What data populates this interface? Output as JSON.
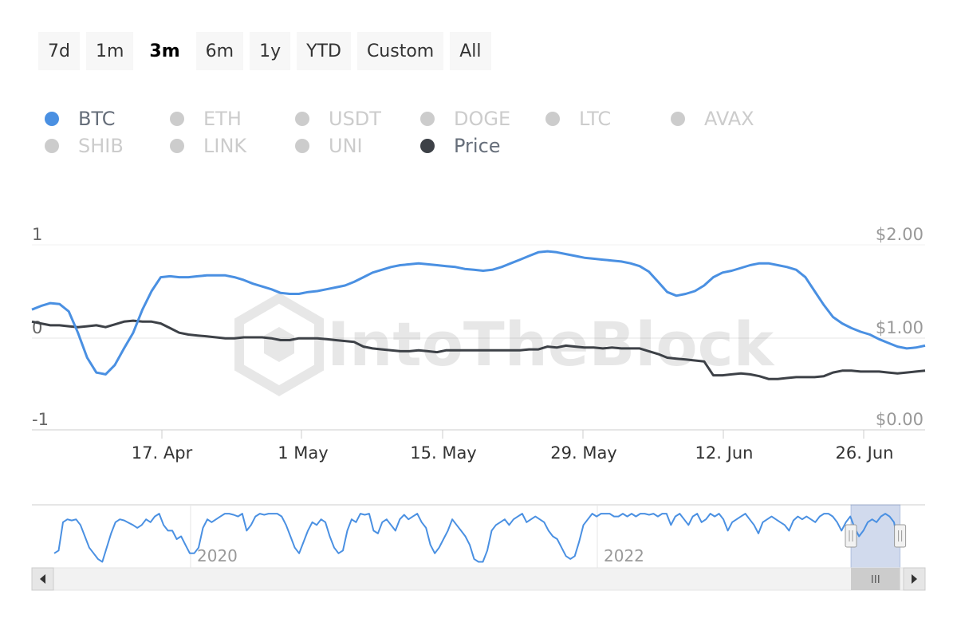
{
  "range_selector": {
    "buttons": [
      "7d",
      "1m",
      "3m",
      "6m",
      "1y",
      "YTD",
      "Custom",
      "All"
    ],
    "active": "3m"
  },
  "legend": {
    "row1": [
      {
        "label": "BTC",
        "color": "#4a90e2",
        "active": true
      },
      {
        "label": "ETH",
        "color": "#cccccc",
        "active": false
      },
      {
        "label": "USDT",
        "color": "#cccccc",
        "active": false
      },
      {
        "label": "DOGE",
        "color": "#cccccc",
        "active": false
      },
      {
        "label": "LTC",
        "color": "#cccccc",
        "active": false
      },
      {
        "label": "AVAX",
        "color": "#cccccc",
        "active": false
      }
    ],
    "row2": [
      {
        "label": "SHIB",
        "color": "#cccccc",
        "active": false
      },
      {
        "label": "LINK",
        "color": "#cccccc",
        "active": false
      },
      {
        "label": "UNI",
        "color": "#cccccc",
        "active": false
      },
      {
        "label": "Price",
        "color": "#3d4147",
        "active": true
      }
    ]
  },
  "watermark": "IntoTheBlock",
  "chart_data": {
    "type": "line",
    "x_ticks": [
      "17. Apr",
      "1 May",
      "15. May",
      "29. May",
      "12. Jun",
      "26. Jun"
    ],
    "left_axis": {
      "ticks": [
        "1",
        "0",
        "-1"
      ],
      "range": [
        -1,
        1
      ]
    },
    "right_axis": {
      "ticks": [
        "$2.00",
        "$1.00",
        "$0.00"
      ],
      "range": [
        0,
        2
      ]
    },
    "series": [
      {
        "color": "#4a90e2",
        "axis": "left",
        "values": [
          0.3,
          0.34,
          0.37,
          0.36,
          0.28,
          0.05,
          -0.22,
          -0.38,
          -0.4,
          -0.3,
          -0.12,
          0.05,
          0.3,
          0.5,
          0.65,
          0.66,
          0.65,
          0.65,
          0.66,
          0.67,
          0.67,
          0.67,
          0.65,
          0.62,
          0.58,
          0.55,
          0.52,
          0.48,
          0.47,
          0.47,
          0.49,
          0.5,
          0.52,
          0.54,
          0.56,
          0.6,
          0.65,
          0.7,
          0.73,
          0.76,
          0.78,
          0.79,
          0.8,
          0.79,
          0.78,
          0.77,
          0.76,
          0.74,
          0.73,
          0.72,
          0.73,
          0.76,
          0.8,
          0.84,
          0.88,
          0.92,
          0.93,
          0.92,
          0.9,
          0.88,
          0.86,
          0.85,
          0.84,
          0.83,
          0.82,
          0.8,
          0.77,
          0.71,
          0.6,
          0.49,
          0.45,
          0.47,
          0.5,
          0.56,
          0.65,
          0.7,
          0.72,
          0.75,
          0.78,
          0.8,
          0.8,
          0.78,
          0.76,
          0.73,
          0.65,
          0.5,
          0.35,
          0.22,
          0.15,
          0.1,
          0.06,
          0.03,
          -0.02,
          -0.06,
          -0.1,
          -0.12,
          -0.11,
          -0.09
        ]
      },
      {
        "color": "#3d4147",
        "axis": "right",
        "values": [
          1.17,
          1.15,
          1.13,
          1.13,
          1.12,
          1.11,
          1.12,
          1.13,
          1.11,
          1.14,
          1.17,
          1.18,
          1.17,
          1.17,
          1.15,
          1.1,
          1.05,
          1.03,
          1.02,
          1.01,
          1.0,
          0.99,
          0.99,
          1.0,
          1.0,
          1.0,
          0.99,
          0.97,
          0.97,
          0.99,
          0.99,
          0.99,
          0.98,
          0.97,
          0.96,
          0.95,
          0.9,
          0.88,
          0.87,
          0.86,
          0.85,
          0.85,
          0.86,
          0.85,
          0.84,
          0.86,
          0.86,
          0.86,
          0.86,
          0.86,
          0.86,
          0.86,
          0.86,
          0.86,
          0.87,
          0.87,
          0.9,
          0.89,
          0.91,
          0.9,
          0.89,
          0.89,
          0.88,
          0.89,
          0.88,
          0.88,
          0.88,
          0.85,
          0.82,
          0.78,
          0.77,
          0.76,
          0.75,
          0.74,
          0.59,
          0.59,
          0.6,
          0.61,
          0.6,
          0.58,
          0.55,
          0.55,
          0.56,
          0.57,
          0.57,
          0.57,
          0.58,
          0.62,
          0.64,
          0.64,
          0.63,
          0.63,
          0.63,
          0.62,
          0.61,
          0.62,
          0.63,
          0.64
        ]
      }
    ]
  },
  "navigator": {
    "year_labels": [
      "2020",
      "2022"
    ],
    "color": "#4a90e2",
    "selected_window": [
      0.917,
      0.972
    ],
    "values": [
      0.2,
      0.25,
      0.75,
      0.8,
      0.78,
      0.8,
      0.7,
      0.5,
      0.3,
      0.2,
      0.1,
      0.05,
      0.3,
      0.55,
      0.75,
      0.8,
      0.78,
      0.74,
      0.7,
      0.65,
      0.7,
      0.8,
      0.75,
      0.85,
      0.9,
      0.7,
      0.6,
      0.6,
      0.45,
      0.5,
      0.35,
      0.2,
      0.2,
      0.3,
      0.65,
      0.8,
      0.75,
      0.8,
      0.85,
      0.9,
      0.9,
      0.88,
      0.85,
      0.9,
      0.6,
      0.7,
      0.85,
      0.9,
      0.88,
      0.9,
      0.9,
      0.9,
      0.85,
      0.7,
      0.5,
      0.3,
      0.2,
      0.4,
      0.6,
      0.75,
      0.7,
      0.8,
      0.75,
      0.5,
      0.3,
      0.2,
      0.25,
      0.6,
      0.8,
      0.75,
      0.9,
      0.88,
      0.9,
      0.6,
      0.55,
      0.75,
      0.8,
      0.7,
      0.6,
      0.8,
      0.88,
      0.8,
      0.85,
      0.9,
      0.75,
      0.65,
      0.35,
      0.2,
      0.3,
      0.45,
      0.6,
      0.8,
      0.7,
      0.6,
      0.5,
      0.35,
      0.1,
      0.05,
      0.05,
      0.25,
      0.6,
      0.7,
      0.75,
      0.8,
      0.7,
      0.8,
      0.85,
      0.9,
      0.75,
      0.8,
      0.85,
      0.8,
      0.75,
      0.6,
      0.5,
      0.45,
      0.3,
      0.15,
      0.1,
      0.15,
      0.4,
      0.7,
      0.8,
      0.9,
      0.85,
      0.9,
      0.9,
      0.9,
      0.85,
      0.85,
      0.9,
      0.85,
      0.9,
      0.85,
      0.9,
      0.9,
      0.88,
      0.9,
      0.85,
      0.9,
      0.9,
      0.7,
      0.85,
      0.9,
      0.8,
      0.7,
      0.85,
      0.9,
      0.75,
      0.8,
      0.9,
      0.85,
      0.9,
      0.8,
      0.6,
      0.75,
      0.8,
      0.85,
      0.9,
      0.8,
      0.7,
      0.55,
      0.75,
      0.8,
      0.85,
      0.8,
      0.75,
      0.7,
      0.6,
      0.78,
      0.85,
      0.8,
      0.85,
      0.8,
      0.75,
      0.85,
      0.9,
      0.9,
      0.85,
      0.75,
      0.6,
      0.75,
      0.85,
      0.65,
      0.5,
      0.6,
      0.75,
      0.8,
      0.75,
      0.85,
      0.9,
      0.85,
      0.75,
      0.35,
      0.55
    ]
  }
}
